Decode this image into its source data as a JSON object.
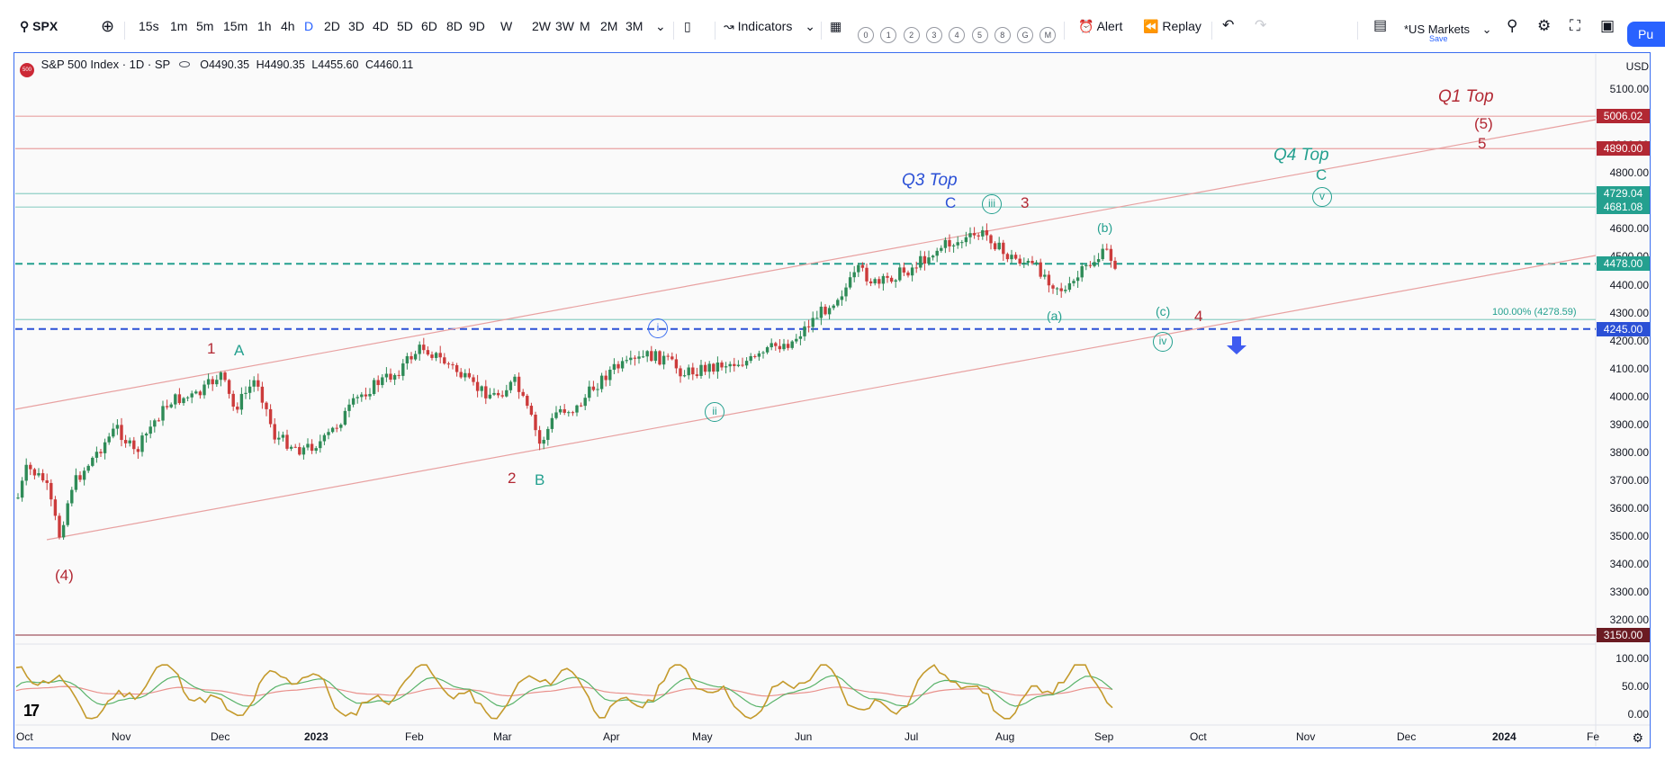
{
  "toolbar": {
    "symbol": "SPX",
    "intervals": [
      "15s",
      "1m",
      "5m",
      "15m",
      "1h",
      "4h",
      "D",
      "2D",
      "3D",
      "4D",
      "5D",
      "6D",
      "8D",
      "9D",
      "W",
      "2W",
      "3W",
      "M",
      "2M",
      "3M"
    ],
    "active_interval": "D",
    "indicators_label": "Indicators",
    "layout_slots": [
      "0",
      "1",
      "2",
      "3",
      "4",
      "5",
      "8",
      "G",
      "M"
    ],
    "alert_label": "Alert",
    "replay_label": "Replay",
    "market_label": "*US Markets",
    "save_label": "Save",
    "publish_label": "Pu"
  },
  "legend": {
    "title": "S&P 500 Index · 1D · SP",
    "logo_text": "500",
    "open_label": "O",
    "open": "4490.35",
    "high_label": "H",
    "high": "4490.35",
    "low_label": "L",
    "low": "4455.60",
    "close_label": "C",
    "close": "4460.11"
  },
  "currency": "USD",
  "price_axis": [
    "5100.00",
    "5000.00",
    "4900.00",
    "4800.00",
    "4700.00",
    "4600.00",
    "4500.00",
    "4400.00",
    "4300.00",
    "4200.00",
    "4100.00",
    "4000.00",
    "3900.00",
    "3800.00",
    "3700.00",
    "3600.00",
    "3500.00",
    "3400.00",
    "3300.00",
    "3200.00"
  ],
  "price_tags": [
    {
      "label": "5006.02",
      "color": "#b22833"
    },
    {
      "label": "4890.00",
      "color": "#b22833"
    },
    {
      "label": "4729.04",
      "color": "#24a08f"
    },
    {
      "label": "4681.08",
      "color": "#24a08f"
    },
    {
      "label": "4478.00",
      "color": "#24a08f"
    },
    {
      "label": "4245.00",
      "color": "#2b50d6"
    },
    {
      "label": "3150.00",
      "color": "#6b1b22"
    }
  ],
  "oscillator_axis": [
    "100.00",
    "50.00",
    "0.00"
  ],
  "time_axis": [
    "Oct",
    "Nov",
    "Dec",
    "2023",
    "Feb",
    "Mar",
    "Apr",
    "May",
    "Jun",
    "Jul",
    "Aug",
    "Sep",
    "Oct",
    "Nov",
    "Dec",
    "2024",
    "Fe"
  ],
  "annotations": {
    "q1_top": "Q1 Top",
    "q3_top": "Q3 Top",
    "q4_top": "Q4 Top",
    "fib_label": "100.00% (4278.59)",
    "w_5p": "(5)",
    "w_5": "5",
    "w_c_q4": "C",
    "w_v": "v",
    "w_c_q3": "C",
    "w_iii": "iii",
    "w_3": "3",
    "w_b": "(b)",
    "w_a": "(a)",
    "w_c_small": "(c)",
    "w_4": "4",
    "w_iv": "iv",
    "w_i": "i",
    "w_1": "1",
    "w_A": "A",
    "w_ii": "ii",
    "w_2": "2",
    "w_B": "B",
    "w_4p": "(4)"
  },
  "colors": {
    "up": "#2e8b57",
    "down": "#cc3b3b",
    "red_line": "#e8a1a1",
    "teal": "#24a08f",
    "blue": "#2b50d6",
    "osc_gold": "#c49a2c"
  },
  "chart_data": {
    "type": "candlestick",
    "symbol": "SPX",
    "interval": "1D",
    "ylim": [
      3150,
      5100
    ],
    "oscillator_ylim": [
      0,
      100
    ],
    "series": [
      {
        "name": "close_approx",
        "x": [
          "2022-10",
          "2022-11",
          "2022-12",
          "2023-01",
          "2023-02",
          "2023-03",
          "2023-04",
          "2023-05",
          "2023-06",
          "2023-07",
          "2023-08",
          "2023-09"
        ],
        "values": [
          3870,
          4000,
          3850,
          4050,
          4100,
          3950,
          4170,
          4180,
          4450,
          4580,
          4500,
          4460
        ]
      }
    ],
    "horizontal_levels": [
      5006.02,
      4890.0,
      4729.04,
      4681.08,
      4478.0,
      4278.59,
      4245.0,
      3150.0
    ]
  }
}
